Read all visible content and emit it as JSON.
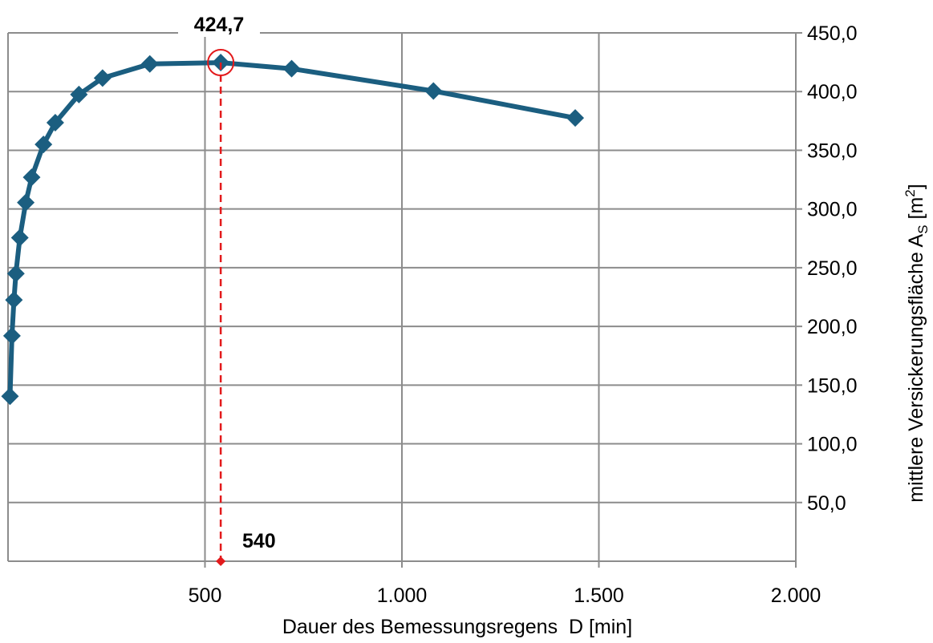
{
  "chart_data": {
    "type": "line",
    "title": "",
    "xlabel": "Dauer des Bemessungsregens  D [min]",
    "ylabel_parts": {
      "main": "mittlere Versickerungsfläche A",
      "subscript": "S",
      "unit_open": " [m",
      "superscript": "2",
      "unit_close": "]"
    },
    "xlim": [
      0,
      2000
    ],
    "ylim": [
      0,
      450
    ],
    "x_ticks": [
      500,
      1000,
      1500,
      2000
    ],
    "x_tick_labels": [
      "500",
      "1.000",
      "1.500",
      "2.000"
    ],
    "y_ticks": [
      50,
      100,
      150,
      200,
      250,
      300,
      350,
      400,
      450
    ],
    "y_tick_labels": [
      "50,0",
      "100,0",
      "150,0",
      "200,0",
      "250,0",
      "300,0",
      "350,0",
      "400,0",
      "450,0"
    ],
    "y_axis_side": "right",
    "grid": true,
    "series": [
      {
        "color": "#1b5e80",
        "marker": "diamond",
        "x": [
          5,
          10,
          15,
          20,
          30,
          45,
          60,
          90,
          120,
          180,
          240,
          360,
          540,
          720,
          1080,
          1440
        ],
        "y": [
          140.5,
          192,
          222.5,
          245,
          275.5,
          305.5,
          327,
          355,
          373.5,
          397.5,
          411.5,
          423.5,
          424.7,
          419.5,
          400.5,
          377.5
        ]
      }
    ],
    "annotations": {
      "max_value_label": "424,7",
      "optimum_x_label": "540",
      "optimum_x": 540,
      "optimum_y": 424.7,
      "highlight_color": "#e31a1c"
    }
  }
}
